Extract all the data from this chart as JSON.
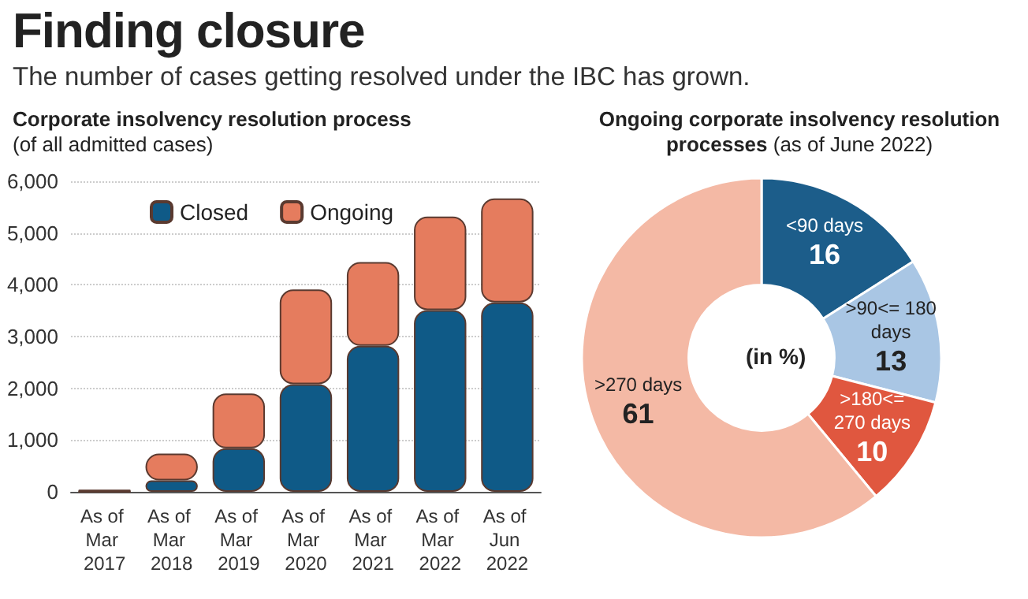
{
  "chart_data": [
    {
      "type": "bar",
      "title": "Corporate insolvency resolution process",
      "subtitle": "(of all admitted cases)",
      "annotations": [
        "Finding closure",
        "The number of cases getting resolved under the IBC has grown."
      ],
      "categories": [
        "As of Mar 2017",
        "As of Mar 2018",
        "As of Mar 2019",
        "As of Mar 2020",
        "As of Mar 2021",
        "As of Mar 2022",
        "As of Jun 2022"
      ],
      "stacked": true,
      "series": [
        {
          "name": "Closed",
          "color": "#0f5a87",
          "values": [
            0,
            220,
            840,
            2080,
            2820,
            3510,
            3660
          ]
        },
        {
          "name": "Ongoing",
          "color": "#e57c5e",
          "values": [
            40,
            520,
            1060,
            1830,
            1620,
            1810,
            2010
          ]
        }
      ],
      "ylim": [
        0,
        6000
      ],
      "yticks": [
        0,
        {
          "value": 1000,
          "label": "1,000"
        },
        {
          "value": 2000,
          "label": "2,000"
        },
        {
          "value": 3000,
          "label": "3,000"
        },
        {
          "value": 4000,
          "label": "4,000"
        },
        {
          "value": 5000,
          "label": "5,000"
        },
        {
          "value": 6000,
          "label": "6,000"
        }
      ],
      "grid": "y",
      "legend": "top"
    },
    {
      "type": "donut",
      "title": "Ongoing corporate insolvency resolution processes",
      "subtitle": "(as of June 2022)",
      "annotations": [
        "(in %)"
      ],
      "categories": [
        "<90 days",
        ">90<= 180 days",
        ">180<= 270 days",
        ">270 days"
      ],
      "values": [
        16,
        13,
        10,
        61
      ],
      "colors": [
        "#1c5d8a",
        "#a9c6e4",
        "#e0573f",
        "#f4b9a5"
      ],
      "data_labels": true
    }
  ]
}
